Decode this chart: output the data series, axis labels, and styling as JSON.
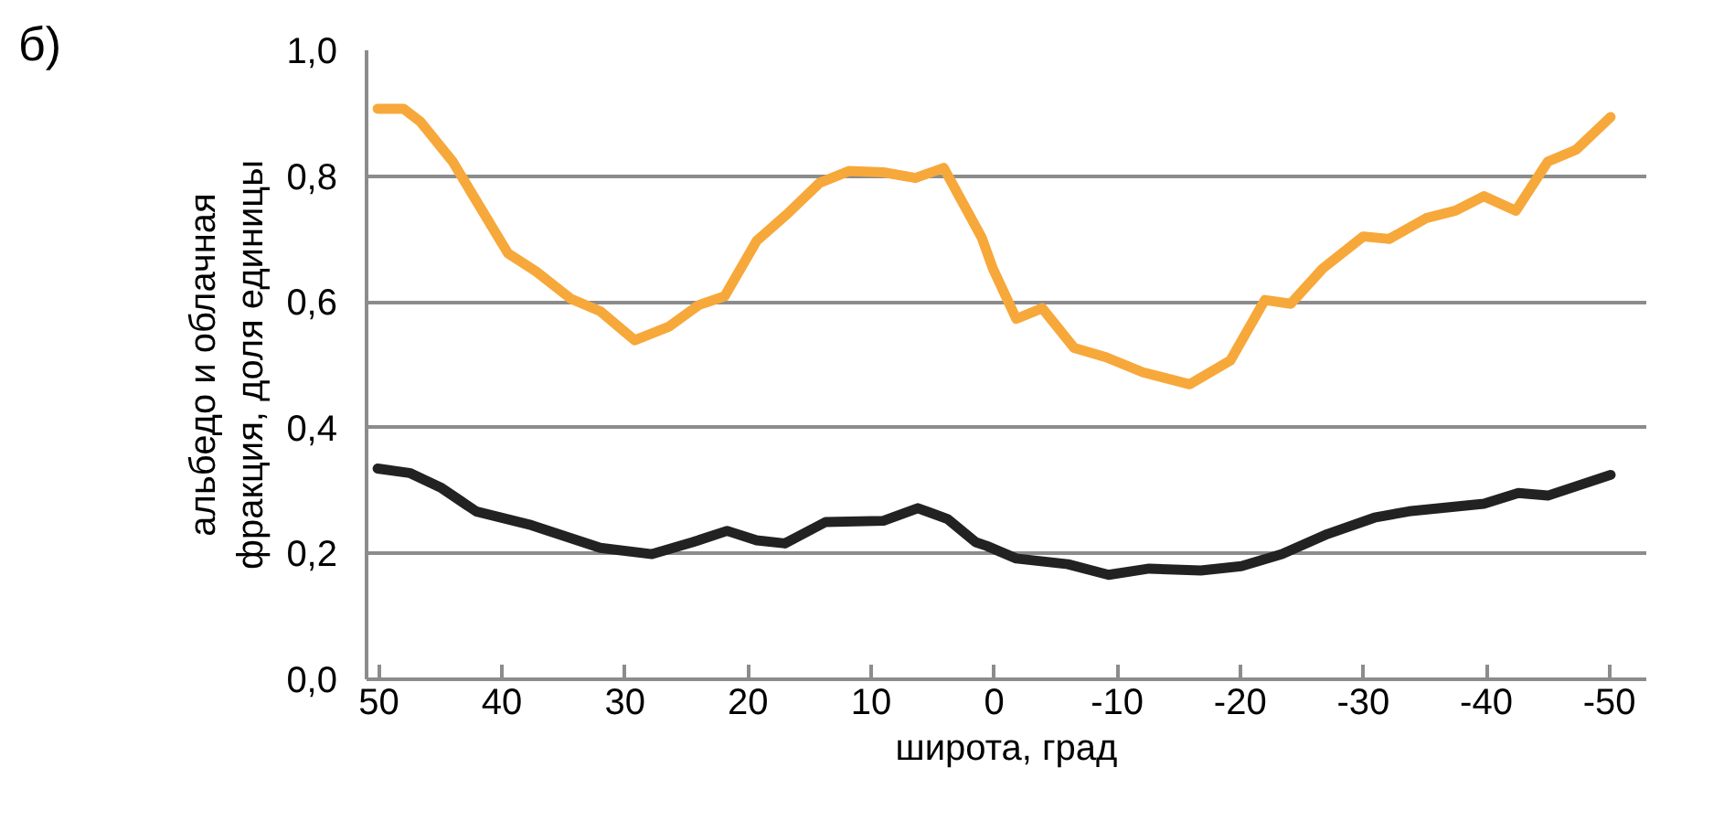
{
  "chart_data": {
    "type": "line",
    "xlabel": "широта, град",
    "ylabel": "альбедо и облачная\nфракция, доля единицы",
    "annotations": [
      "б)"
    ],
    "xlim": [
      51,
      -53
    ],
    "xticks": [
      50,
      40,
      30,
      20,
      10,
      0,
      -10,
      -20,
      -30,
      -40,
      -50
    ],
    "ylim": [
      0,
      1
    ],
    "yticks": [
      {
        "value": 0,
        "label": "0,0"
      },
      {
        "value": 0.2,
        "label": "0,2"
      },
      {
        "value": 0.4,
        "label": "0,4"
      },
      {
        "value": 0.6,
        "label": "0,6"
      },
      {
        "value": 0.8,
        "label": "0,8"
      },
      {
        "value": 1,
        "label": "1,0"
      }
    ],
    "grid": "y",
    "marker": "none",
    "line_style": "solid",
    "series": [
      {
        "color": "#f7a83a",
        "x": [
          50.1,
          48.0,
          46.6,
          44.0,
          41.6,
          39.5,
          37.2,
          34.4,
          32.0,
          29.2,
          26.4,
          24.0,
          21.9,
          19.3,
          16.8,
          14.2,
          11.8,
          9.0,
          6.4,
          4.1,
          1.0,
          0.1,
          -1.8,
          -3.9,
          -6.5,
          -9.1,
          -12.1,
          -15.9,
          -19.2,
          -22.0,
          -24.1,
          -26.7,
          -30.0,
          -32.1,
          -35.1,
          -37.5,
          -39.8,
          -42.4,
          -45.0,
          -47.3,
          -50.1
        ],
        "values": [
          0.907,
          0.907,
          0.886,
          0.823,
          0.745,
          0.677,
          0.648,
          0.605,
          0.585,
          0.539,
          0.561,
          0.595,
          0.609,
          0.697,
          0.74,
          0.789,
          0.808,
          0.806,
          0.797,
          0.813,
          0.702,
          0.653,
          0.573,
          0.59,
          0.527,
          0.512,
          0.488,
          0.469,
          0.507,
          0.603,
          0.597,
          0.653,
          0.704,
          0.7,
          0.733,
          0.745,
          0.768,
          0.745,
          0.823,
          0.842,
          0.894
        ]
      },
      {
        "color": "#222222",
        "x": [
          50.1,
          47.5,
          44.9,
          42.1,
          37.6,
          32.0,
          27.8,
          24.5,
          21.7,
          19.3,
          17.0,
          13.7,
          9.0,
          6.2,
          3.8,
          1.5,
          0.6,
          -1.8,
          -6.0,
          -9.3,
          -12.6,
          -16.8,
          -20.1,
          -23.4,
          -27.1,
          -30.9,
          -33.7,
          -39.8,
          -42.6,
          -45.0,
          -50.1
        ],
        "values": [
          0.335,
          0.328,
          0.304,
          0.267,
          0.245,
          0.209,
          0.199,
          0.218,
          0.236,
          0.221,
          0.216,
          0.25,
          0.252,
          0.272,
          0.255,
          0.218,
          0.212,
          0.192,
          0.183,
          0.166,
          0.176,
          0.173,
          0.18,
          0.199,
          0.231,
          0.257,
          0.267,
          0.279,
          0.296,
          0.292,
          0.325
        ]
      }
    ]
  }
}
